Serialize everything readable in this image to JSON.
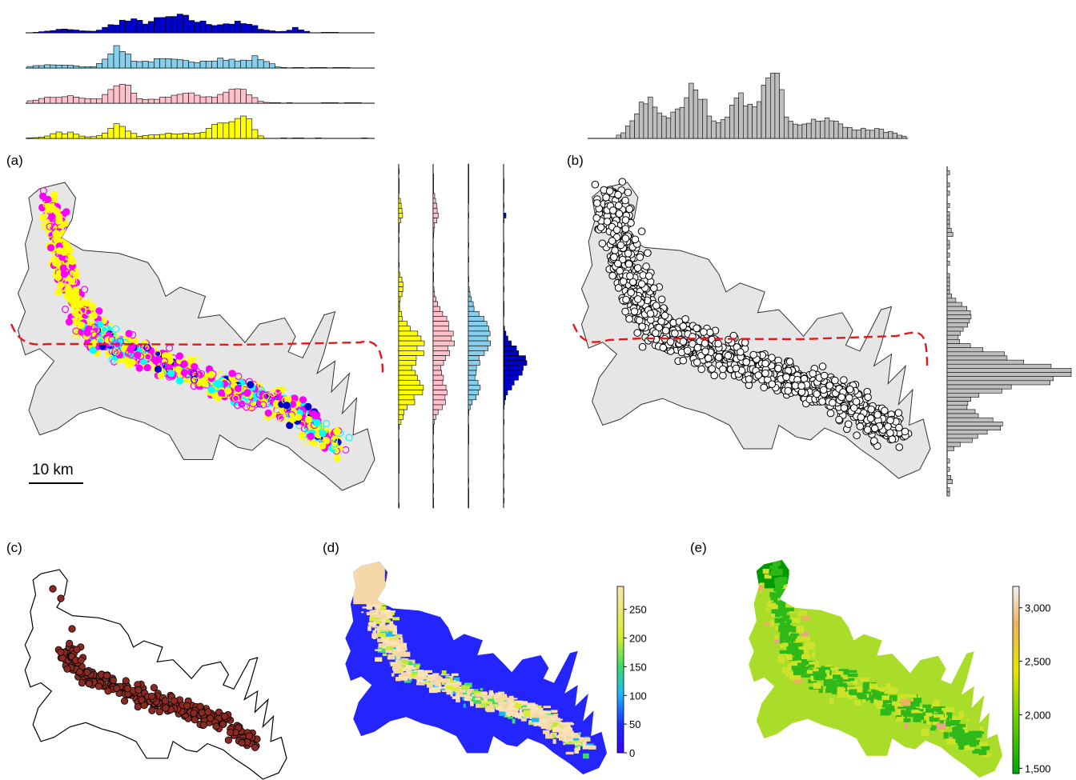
{
  "panels": {
    "a": {
      "label": "(a)",
      "scale_bar_label": "10 km"
    },
    "b": {
      "label": "(b)"
    },
    "c": {
      "label": "(c)"
    },
    "d": {
      "label": "(d)",
      "colorbar_ticks": [
        "250",
        "200",
        "150",
        "100",
        "50",
        "0"
      ],
      "colorbar_range": [
        0,
        290
      ]
    },
    "e": {
      "label": "(e)",
      "colorbar_ticks": [
        "3,000",
        "2,500",
        "2,000",
        "1,500"
      ],
      "colorbar_range": [
        1450,
        3200
      ]
    }
  },
  "colors": {
    "series_dark_blue": "#0000cd",
    "series_light_blue": "#87ceeb",
    "series_pink": "#ffc0cb",
    "series_yellow": "#ffff00",
    "magenta_points": "#ff00ff",
    "cyan_points": "#00ffff",
    "region_fill": "#e6e6e6",
    "grey_bars": "#bebebe",
    "red_dashed_line": "#e31a1c",
    "brown_points": "#8b2a22"
  }
}
